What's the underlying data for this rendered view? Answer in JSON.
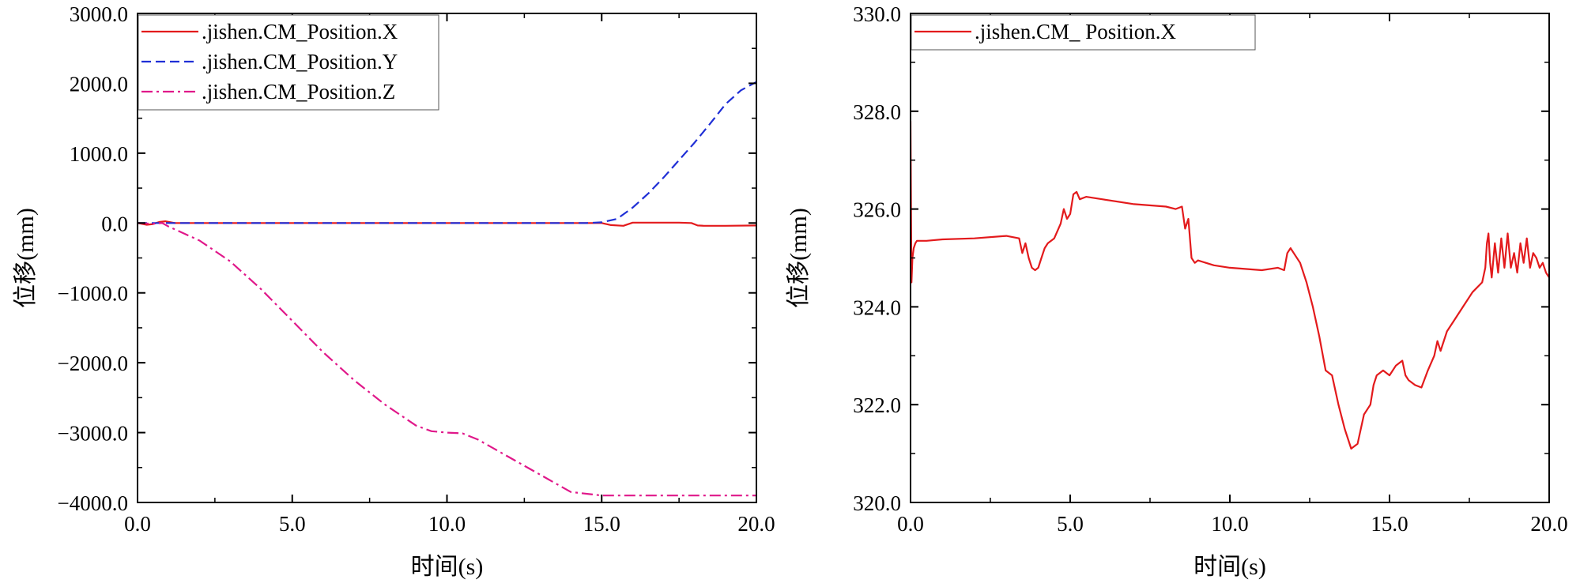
{
  "chart_data": [
    {
      "type": "line",
      "xlabel": "时间(s)",
      "ylabel": "位移(mm)",
      "xlim": [
        0,
        20
      ],
      "ylim": [
        -4000,
        3000
      ],
      "xticks": [
        0,
        5,
        10,
        15,
        20
      ],
      "yticks": [
        3000,
        2000,
        1000,
        0,
        -1000,
        -2000,
        -3000,
        -4000
      ],
      "xtick_labels": [
        "0.0",
        "5.0",
        "10.0",
        "15.0",
        "20.0"
      ],
      "ytick_labels": [
        "3000.0",
        "2000.0",
        "1000.0",
        "0.0",
        "−1000.0",
        "−2000.0",
        "−3000.0",
        "−4000.0"
      ],
      "legend_position": "top-left",
      "series": [
        {
          "name": ".jishen.CM_Position.X",
          "color": "#e31a1c",
          "dash": "solid",
          "x": [
            0,
            0.3,
            0.5,
            0.7,
            0.9,
            1.2,
            2,
            5,
            10,
            14,
            15,
            15.3,
            15.7,
            16,
            16.5,
            17.5,
            17.9,
            18.1,
            18.3,
            19,
            20
          ],
          "y": [
            0,
            -25,
            -15,
            15,
            25,
            0,
            0,
            0,
            0,
            0,
            0,
            -30,
            -40,
            5,
            5,
            5,
            0,
            -35,
            -40,
            -40,
            -35
          ]
        },
        {
          "name": ".jishen.CM_Position.Y",
          "color": "#1f2fd6",
          "dash": "dashed",
          "x": [
            0,
            5,
            10,
            14.5,
            15,
            15.5,
            16,
            16.5,
            17,
            17.5,
            18,
            18.5,
            19,
            19.5,
            20
          ],
          "y": [
            0,
            0,
            0,
            0,
            10,
            60,
            220,
            420,
            650,
            900,
            1150,
            1420,
            1700,
            1900,
            2020
          ]
        },
        {
          "name": ".jishen.CM_Position.Z",
          "color": "#e0188a",
          "dash": "dashdot",
          "x": [
            0,
            0.5,
            0.8,
            1,
            2,
            3,
            4,
            5,
            6,
            7,
            8,
            9,
            9.5,
            10,
            10.5,
            11,
            12,
            13,
            14,
            15,
            16,
            17,
            18,
            19,
            20
          ],
          "y": [
            0,
            -10,
            0,
            -50,
            -250,
            -550,
            -950,
            -1400,
            -1850,
            -2250,
            -2600,
            -2900,
            -2980,
            -3000,
            -3010,
            -3100,
            -3350,
            -3600,
            -3850,
            -3900,
            -3900,
            -3900,
            -3900,
            -3900,
            -3900
          ]
        }
      ]
    },
    {
      "type": "line",
      "xlabel": "时间(s)",
      "ylabel": "位移(mm)",
      "xlim": [
        0,
        20
      ],
      "ylim": [
        320,
        330
      ],
      "xticks": [
        0,
        5,
        10,
        15,
        20
      ],
      "yticks": [
        330,
        328,
        326,
        324,
        322,
        320
      ],
      "xtick_labels": [
        "0.0",
        "5.0",
        "10.0",
        "15.0",
        "20.0"
      ],
      "ytick_labels": [
        "330.0",
        "328.0",
        "326.0",
        "324.0",
        "322.0",
        "320.0"
      ],
      "legend_position": "top-left",
      "series": [
        {
          "name": ".jishen.CM_ Position.X",
          "color": "#e31a1c",
          "dash": "solid",
          "x": [
            0,
            0.03,
            0.06,
            0.1,
            0.15,
            0.2,
            0.3,
            0.5,
            1,
            2,
            3,
            3.4,
            3.5,
            3.6,
            3.7,
            3.8,
            3.9,
            4,
            4.1,
            4.2,
            4.3,
            4.5,
            4.7,
            4.8,
            4.9,
            5,
            5.1,
            5.2,
            5.3,
            5.5,
            6,
            7,
            8,
            8.3,
            8.5,
            8.6,
            8.7,
            8.8,
            8.9,
            9,
            9.5,
            10,
            11,
            11.5,
            11.7,
            11.8,
            11.9,
            12,
            12.2,
            12.4,
            12.6,
            12.8,
            13,
            13.2,
            13.4,
            13.6,
            13.8,
            14,
            14.2,
            14.4,
            14.5,
            14.6,
            14.8,
            15,
            15.2,
            15.4,
            15.5,
            15.6,
            15.8,
            16,
            16.2,
            16.4,
            16.5,
            16.6,
            16.8,
            17,
            17.3,
            17.6,
            17.9,
            18,
            18.05,
            18.1,
            18.15,
            18.2,
            18.3,
            18.4,
            18.5,
            18.6,
            18.7,
            18.8,
            18.9,
            19,
            19.1,
            19.2,
            19.3,
            19.4,
            19.5,
            19.6,
            19.7,
            19.8,
            19.9,
            20
          ],
          "y": [
            327.8,
            324.5,
            325.0,
            325.2,
            325.3,
            325.35,
            325.35,
            325.35,
            325.38,
            325.4,
            325.45,
            325.4,
            325.1,
            325.3,
            325.0,
            324.8,
            324.75,
            324.8,
            325.0,
            325.2,
            325.3,
            325.4,
            325.7,
            326.0,
            325.8,
            325.9,
            326.3,
            326.35,
            326.2,
            326.25,
            326.2,
            326.1,
            326.05,
            326.0,
            326.05,
            325.6,
            325.8,
            325.0,
            324.9,
            324.95,
            324.85,
            324.8,
            324.75,
            324.8,
            324.75,
            325.1,
            325.2,
            325.1,
            324.9,
            324.5,
            324.0,
            323.4,
            322.7,
            322.6,
            322.0,
            321.5,
            321.1,
            321.2,
            321.8,
            322.0,
            322.4,
            322.6,
            322.7,
            322.6,
            322.8,
            322.9,
            322.6,
            322.5,
            322.4,
            322.35,
            322.7,
            323.0,
            323.3,
            323.1,
            323.5,
            323.7,
            324.0,
            324.3,
            324.5,
            324.8,
            325.3,
            325.5,
            324.9,
            324.6,
            325.3,
            324.7,
            325.4,
            324.8,
            325.5,
            324.8,
            325.1,
            324.7,
            325.3,
            324.9,
            325.4,
            324.8,
            325.1,
            325.0,
            324.8,
            324.9,
            324.7,
            324.6
          ]
        }
      ]
    }
  ]
}
